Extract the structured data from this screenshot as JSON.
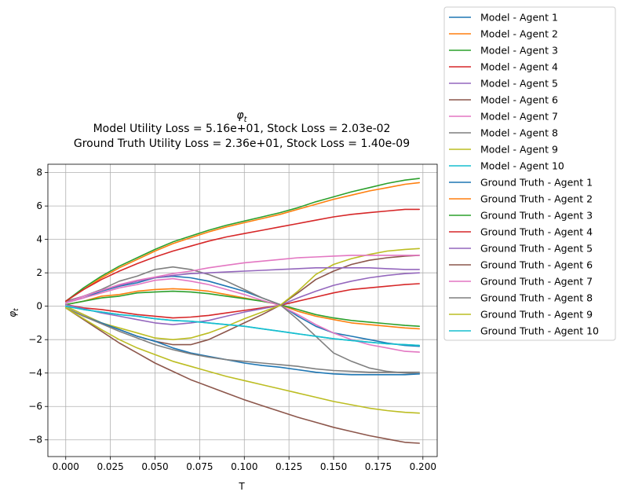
{
  "chart_data": {
    "type": "line",
    "title_symbol": "φ",
    "title_symbol_sub": "t",
    "title_line2": "Model Utility Loss = 5.16e+01, Stock Loss = 2.03e-02",
    "title_line3": "Ground Truth Utility Loss = 2.36e+01, Stock Loss = 1.40e-09",
    "xlabel": "T",
    "ylabel_symbol": "φ",
    "ylabel_sub": "t",
    "xlim": [
      -0.01,
      0.208
    ],
    "ylim": [
      -9.0,
      8.5
    ],
    "xticks": [
      0.0,
      0.025,
      0.05,
      0.075,
      0.1,
      0.125,
      0.15,
      0.175,
      0.2
    ],
    "xtick_labels": [
      "0.000",
      "0.025",
      "0.050",
      "0.075",
      "0.100",
      "0.125",
      "0.150",
      "0.175",
      "0.200"
    ],
    "yticks": [
      -8,
      -6,
      -4,
      -2,
      0,
      2,
      4,
      6,
      8
    ],
    "ytick_labels": [
      "−8",
      "−6",
      "−4",
      "−2",
      "0",
      "2",
      "4",
      "6",
      "8"
    ],
    "grid": true,
    "legend_placement": "outside-right",
    "x": [
      0.0,
      0.01,
      0.02,
      0.03,
      0.04,
      0.05,
      0.06,
      0.07,
      0.08,
      0.09,
      0.1,
      0.11,
      0.12,
      0.13,
      0.14,
      0.15,
      0.16,
      0.17,
      0.18,
      0.19,
      0.198
    ],
    "series": [
      {
        "name": "Model - Agent 1",
        "color": "#1f77b4",
        "values": [
          0.2,
          0.5,
          0.9,
          1.2,
          1.4,
          1.7,
          1.8,
          1.7,
          1.5,
          1.2,
          0.9,
          0.5,
          0.1,
          -0.6,
          -1.2,
          -1.6,
          -1.8,
          -2.0,
          -2.2,
          -2.35,
          -2.4
        ]
      },
      {
        "name": "Model - Agent 2",
        "color": "#ff7f0e",
        "values": [
          0.1,
          0.3,
          0.6,
          0.7,
          0.9,
          1.0,
          1.05,
          1.0,
          0.9,
          0.7,
          0.5,
          0.3,
          0.1,
          -0.3,
          -0.6,
          -0.8,
          -1.0,
          -1.1,
          -1.2,
          -1.3,
          -1.35
        ]
      },
      {
        "name": "Model - Agent 3",
        "color": "#2ca02c",
        "values": [
          0.1,
          0.3,
          0.5,
          0.6,
          0.8,
          0.85,
          0.9,
          0.85,
          0.75,
          0.6,
          0.45,
          0.3,
          0.1,
          -0.2,
          -0.5,
          -0.7,
          -0.85,
          -0.95,
          -1.05,
          -1.15,
          -1.2
        ]
      },
      {
        "name": "Model - Agent 4",
        "color": "#d62728",
        "values": [
          0.1,
          -0.1,
          -0.2,
          -0.35,
          -0.5,
          -0.6,
          -0.7,
          -0.65,
          -0.55,
          -0.4,
          -0.25,
          -0.1,
          0.05,
          0.3,
          0.55,
          0.8,
          1.0,
          1.1,
          1.2,
          1.3,
          1.35
        ]
      },
      {
        "name": "Model - Agent 5",
        "color": "#9467bd",
        "values": [
          0.1,
          -0.15,
          -0.4,
          -0.6,
          -0.8,
          -1.0,
          -1.1,
          -1.0,
          -0.85,
          -0.6,
          -0.35,
          -0.15,
          0.05,
          0.5,
          0.9,
          1.25,
          1.5,
          1.7,
          1.85,
          1.95,
          2.0
        ]
      },
      {
        "name": "Model - Agent 6",
        "color": "#8c564b",
        "values": [
          0.0,
          -0.5,
          -1.0,
          -1.4,
          -1.8,
          -2.1,
          -2.3,
          -2.3,
          -2.0,
          -1.5,
          -1.0,
          -0.5,
          0.05,
          0.8,
          1.6,
          2.1,
          2.5,
          2.75,
          2.9,
          3.0,
          3.05
        ]
      },
      {
        "name": "Model - Agent 7",
        "color": "#e377c2",
        "values": [
          0.2,
          0.5,
          0.8,
          1.1,
          1.3,
          1.55,
          1.65,
          1.5,
          1.3,
          1.0,
          0.7,
          0.35,
          0.05,
          -0.5,
          -1.1,
          -1.6,
          -2.0,
          -2.3,
          -2.5,
          -2.7,
          -2.75
        ]
      },
      {
        "name": "Model - Agent 8",
        "color": "#7f7f7f",
        "values": [
          0.3,
          0.6,
          1.0,
          1.5,
          1.8,
          2.2,
          2.35,
          2.2,
          1.9,
          1.5,
          1.0,
          0.5,
          0.1,
          -0.8,
          -1.8,
          -2.8,
          -3.3,
          -3.7,
          -3.9,
          -4.0,
          -4.05
        ]
      },
      {
        "name": "Model - Agent 9",
        "color": "#bcbd22",
        "values": [
          0.0,
          -0.5,
          -1.0,
          -1.3,
          -1.6,
          -1.9,
          -2.0,
          -1.9,
          -1.6,
          -1.2,
          -0.75,
          -0.35,
          0.05,
          0.9,
          1.9,
          2.5,
          2.85,
          3.1,
          3.3,
          3.4,
          3.45
        ]
      },
      {
        "name": "Model - Agent 10",
        "color": "#17becf",
        "values": [
          0.0,
          -0.2,
          -0.35,
          -0.5,
          -0.6,
          -0.75,
          -0.85,
          -0.9,
          -1.0,
          -1.1,
          -1.2,
          -1.35,
          -1.5,
          -1.65,
          -1.8,
          -1.95,
          -2.05,
          -2.15,
          -2.25,
          -2.3,
          -2.35
        ]
      },
      {
        "name": "Ground Truth - Agent 1",
        "color": "#1f77b4",
        "values": [
          -0.1,
          -0.6,
          -1.0,
          -1.4,
          -1.8,
          -2.1,
          -2.5,
          -2.8,
          -3.0,
          -3.2,
          -3.4,
          -3.55,
          -3.65,
          -3.8,
          -3.95,
          -4.05,
          -4.1,
          -4.1,
          -4.1,
          -4.1,
          -4.05
        ]
      },
      {
        "name": "Ground Truth - Agent 2",
        "color": "#ff7f0e",
        "values": [
          0.3,
          1.0,
          1.7,
          2.3,
          2.8,
          3.3,
          3.75,
          4.1,
          4.45,
          4.75,
          5.0,
          5.25,
          5.5,
          5.8,
          6.1,
          6.4,
          6.65,
          6.9,
          7.1,
          7.3,
          7.4
        ]
      },
      {
        "name": "Ground Truth - Agent 3",
        "color": "#2ca02c",
        "values": [
          0.3,
          1.1,
          1.8,
          2.4,
          2.9,
          3.4,
          3.85,
          4.2,
          4.55,
          4.85,
          5.1,
          5.35,
          5.6,
          5.9,
          6.25,
          6.55,
          6.85,
          7.1,
          7.35,
          7.55,
          7.65
        ]
      },
      {
        "name": "Ground Truth - Agent 4",
        "color": "#d62728",
        "values": [
          0.3,
          1.0,
          1.6,
          2.1,
          2.55,
          2.95,
          3.3,
          3.6,
          3.9,
          4.15,
          4.35,
          4.55,
          4.75,
          4.95,
          5.15,
          5.35,
          5.5,
          5.6,
          5.7,
          5.8,
          5.8
        ]
      },
      {
        "name": "Ground Truth - Agent 5",
        "color": "#9467bd",
        "values": [
          0.2,
          0.6,
          0.95,
          1.25,
          1.5,
          1.7,
          1.85,
          1.95,
          2.0,
          2.05,
          2.1,
          2.15,
          2.2,
          2.25,
          2.3,
          2.3,
          2.3,
          2.3,
          2.25,
          2.2,
          2.2
        ]
      },
      {
        "name": "Ground Truth - Agent 6",
        "color": "#8c564b",
        "values": [
          -0.1,
          -0.8,
          -1.5,
          -2.2,
          -2.8,
          -3.4,
          -3.9,
          -4.4,
          -4.8,
          -5.2,
          -5.6,
          -5.95,
          -6.3,
          -6.65,
          -6.95,
          -7.25,
          -7.5,
          -7.75,
          -7.95,
          -8.15,
          -8.2
        ]
      },
      {
        "name": "Ground Truth - Agent 7",
        "color": "#e377c2",
        "values": [
          0.2,
          0.6,
          0.95,
          1.3,
          1.55,
          1.75,
          1.95,
          2.1,
          2.3,
          2.45,
          2.6,
          2.7,
          2.8,
          2.9,
          2.95,
          3.0,
          3.05,
          3.05,
          3.05,
          3.05,
          3.05
        ]
      },
      {
        "name": "Ground Truth - Agent 8",
        "color": "#7f7f7f",
        "values": [
          -0.1,
          -0.6,
          -1.05,
          -1.5,
          -1.9,
          -2.3,
          -2.6,
          -2.85,
          -3.05,
          -3.2,
          -3.3,
          -3.4,
          -3.5,
          -3.6,
          -3.75,
          -3.85,
          -3.9,
          -3.95,
          -3.95,
          -3.95,
          -3.95
        ]
      },
      {
        "name": "Ground Truth - Agent 9",
        "color": "#bcbd22",
        "values": [
          -0.1,
          -0.75,
          -1.4,
          -2.0,
          -2.5,
          -2.9,
          -3.3,
          -3.6,
          -3.9,
          -4.2,
          -4.45,
          -4.7,
          -4.95,
          -5.2,
          -5.45,
          -5.7,
          -5.9,
          -6.1,
          -6.25,
          -6.35,
          -6.4
        ]
      },
      {
        "name": "Ground Truth - Agent 10",
        "color": "#17becf",
        "values": [
          0.0,
          -0.2,
          -0.35,
          -0.5,
          -0.6,
          -0.75,
          -0.85,
          -0.9,
          -1.0,
          -1.1,
          -1.2,
          -1.35,
          -1.5,
          -1.65,
          -1.8,
          -1.95,
          -2.05,
          -2.15,
          -2.25,
          -2.3,
          -2.35
        ]
      }
    ]
  }
}
